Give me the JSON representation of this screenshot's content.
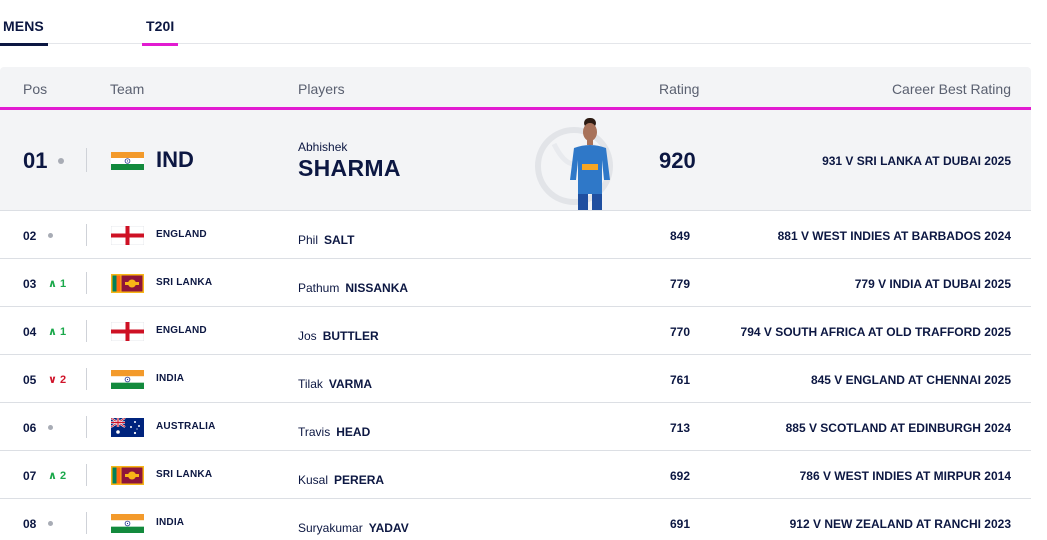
{
  "tabs": [
    {
      "label": "MENS"
    },
    {
      "label": "T20I"
    }
  ],
  "headers": {
    "pos": "Pos",
    "team": "Team",
    "players": "Players",
    "rating": "Rating",
    "best": "Career Best Rating"
  },
  "top": {
    "pos": "01",
    "team": "IND",
    "flag": "india",
    "first_name": "Abhishek",
    "last_name": "SHARMA",
    "rating": "920",
    "best": "931 V SRI LANKA AT DUBAI 2025"
  },
  "rows": [
    {
      "pos": "02",
      "move": "",
      "team": "ENGLAND",
      "flag": "england",
      "first_name": "Phil",
      "last_name": "SALT",
      "rating": "849",
      "best": "881 V WEST INDIES AT BARBADOS 2024"
    },
    {
      "pos": "03",
      "move": "1",
      "team": "SRI LANKA",
      "flag": "srilanka",
      "first_name": "Pathum",
      "last_name": "NISSANKA",
      "rating": "779",
      "best": "779 V INDIA AT DUBAI 2025"
    },
    {
      "pos": "04",
      "move": "1",
      "team": "ENGLAND",
      "flag": "england",
      "first_name": "Jos",
      "last_name": "BUTTLER",
      "rating": "770",
      "best": "794 V SOUTH AFRICA AT OLD TRAFFORD 2025"
    },
    {
      "pos": "05",
      "move": "2",
      "team": "INDIA",
      "flag": "india",
      "first_name": "Tilak",
      "last_name": "VARMA",
      "rating": "761",
      "best": "845 V ENGLAND AT CHENNAI 2025"
    },
    {
      "pos": "06",
      "move": "",
      "team": "AUSTRALIA",
      "flag": "australia",
      "first_name": "Travis",
      "last_name": "HEAD",
      "rating": "713",
      "best": "885 V SCOTLAND AT EDINBURGH 2024"
    },
    {
      "pos": "07",
      "move": "2",
      "team": "SRI LANKA",
      "flag": "srilanka",
      "first_name": "Kusal",
      "last_name": "PERERA",
      "rating": "692",
      "best": "786 V WEST INDIES AT MIRPUR 2014"
    },
    {
      "pos": "08",
      "move": "",
      "team": "INDIA",
      "flag": "india",
      "first_name": "Suryakumar",
      "last_name": "YADAV",
      "rating": "691",
      "best": "912 V NEW ZEALAND AT RANCHI 2023"
    }
  ],
  "row_movement": [
    "none",
    "up",
    "up",
    "down",
    "none",
    "up",
    "none"
  ],
  "colors": {
    "accent": "#e21bd1",
    "navy": "#0c1742",
    "up": "#1aa84a",
    "down": "#d0142a"
  }
}
